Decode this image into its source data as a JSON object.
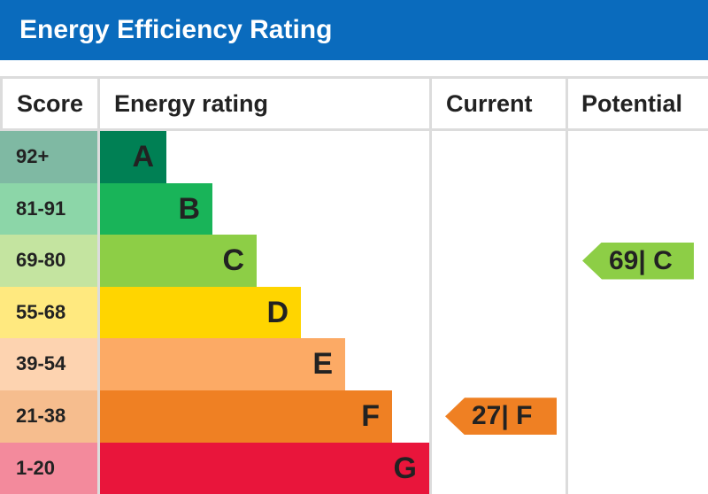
{
  "title": "Energy Efficiency Rating",
  "headers": {
    "score": "Score",
    "rating": "Energy rating",
    "current": "Current",
    "potential": "Potential"
  },
  "chart_data": {
    "type": "bar",
    "bands": [
      {
        "score": "92+",
        "letter": "A",
        "color": "#008054",
        "score_color": "#7fb9a3"
      },
      {
        "score": "81-91",
        "letter": "B",
        "color": "#19b459",
        "score_color": "#8cd6a8"
      },
      {
        "score": "69-80",
        "letter": "C",
        "color": "#8dce46",
        "score_color": "#c4e4a0"
      },
      {
        "score": "55-68",
        "letter": "D",
        "color": "#ffd500",
        "score_color": "#ffe97f"
      },
      {
        "score": "39-54",
        "letter": "E",
        "color": "#fcaa65",
        "score_color": "#fdd3b0"
      },
      {
        "score": "21-38",
        "letter": "F",
        "color": "#ef8023",
        "score_color": "#f6bd8e"
      },
      {
        "score": "1-20",
        "letter": "G",
        "color": "#e9153b",
        "score_color": "#f38a9c"
      }
    ],
    "current": {
      "value": 27,
      "letter": "F",
      "label": "27| F",
      "color": "#ef8023"
    },
    "potential": {
      "value": 69,
      "letter": "C",
      "label": "69| C",
      "color": "#8dce46"
    }
  }
}
